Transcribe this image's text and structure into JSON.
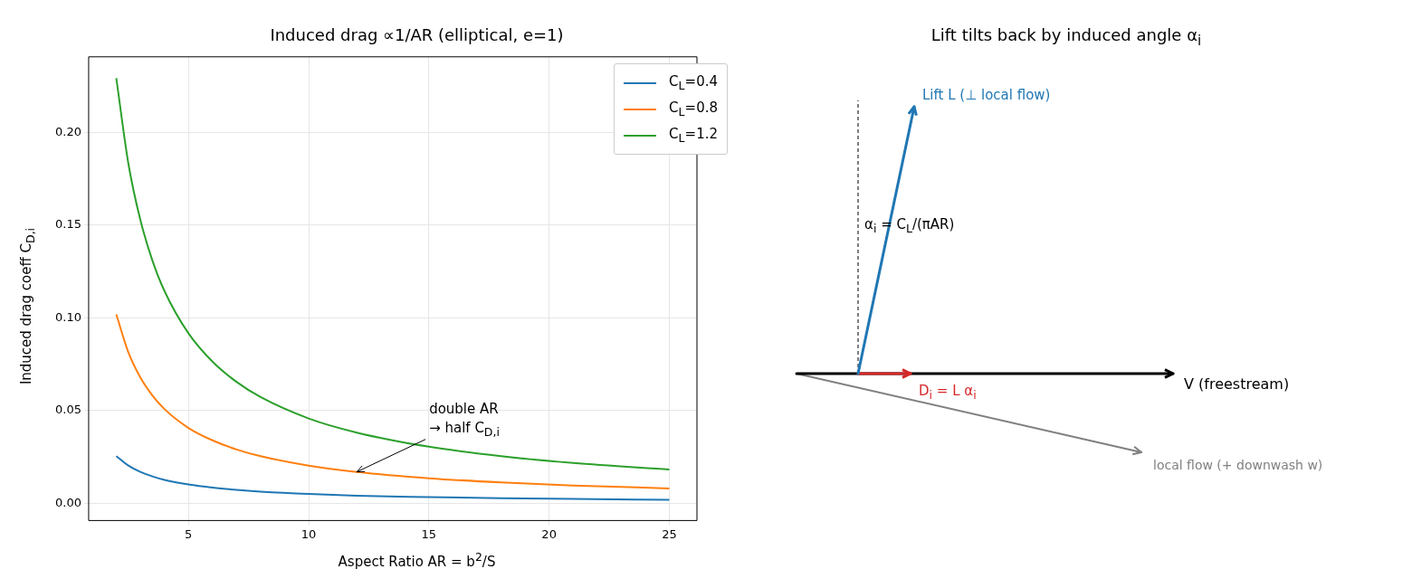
{
  "chart_data": [
    {
      "type": "line",
      "title": "Induced drag ∝1/AR  (elliptical, e=1)",
      "xlabel": "Aspect Ratio  AR = b$^{2}$/S",
      "ylabel": "Induced drag coeff  C$_{D,i}$",
      "x": [
        2,
        2.5,
        3,
        3.5,
        4,
        5,
        6,
        7,
        8,
        10,
        12,
        15,
        18,
        21,
        25
      ],
      "series": [
        {
          "name": "C$_{L}$=0.4",
          "color": "#1f77b4",
          "values": [
            0.0255,
            0.0204,
            0.017,
            0.0146,
            0.0127,
            0.0102,
            0.0085,
            0.0073,
            0.0064,
            0.0051,
            0.0042,
            0.0034,
            0.0028,
            0.0024,
            0.002
          ]
        },
        {
          "name": "C$_{L}$=0.8",
          "color": "#ff7f0e",
          "values": [
            0.1019,
            0.0815,
            0.0679,
            0.0582,
            0.0509,
            0.0407,
            0.034,
            0.0291,
            0.0255,
            0.0204,
            0.017,
            0.0136,
            0.0113,
            0.0097,
            0.0081
          ]
        },
        {
          "name": "C$_{L}$=1.2",
          "color": "#2ca02c",
          "values": [
            0.2292,
            0.1833,
            0.1528,
            0.131,
            0.1146,
            0.0917,
            0.0764,
            0.0655,
            0.0573,
            0.0458,
            0.0382,
            0.0306,
            0.0255,
            0.0218,
            0.0183
          ]
        }
      ],
      "xlim": [
        0.85,
        26.15
      ],
      "xticks": [
        5,
        10,
        15,
        20,
        25
      ],
      "ylim": [
        -0.0092,
        0.2407
      ],
      "yticks": [
        {
          "value": 0,
          "label": "0.00"
        },
        {
          "value": 0.05,
          "label": "0.05"
        },
        {
          "value": 0.1,
          "label": "0.10"
        },
        {
          "value": 0.15,
          "label": "0.15"
        },
        {
          "value": 0.2,
          "label": "0.20"
        }
      ],
      "grid": true,
      "legend": "top right",
      "marker": "none",
      "line_style": "solid",
      "annotations": [
        {
          "text": "double AR\n→ half C$_{D,i}$",
          "x": 12,
          "y": 0.017
        }
      ]
    },
    {
      "type": "other",
      "title": "Lift tilts back by induced angle α$_{i}$",
      "annotations": [
        "Lift L (⊥ local flow)",
        "α$_{i}$ = C$_{L}$/(πAR)",
        "V (freestream)",
        "D$_{i}$ = L α$_{i}$",
        "local flow (+ downwash w)"
      ]
    }
  ]
}
